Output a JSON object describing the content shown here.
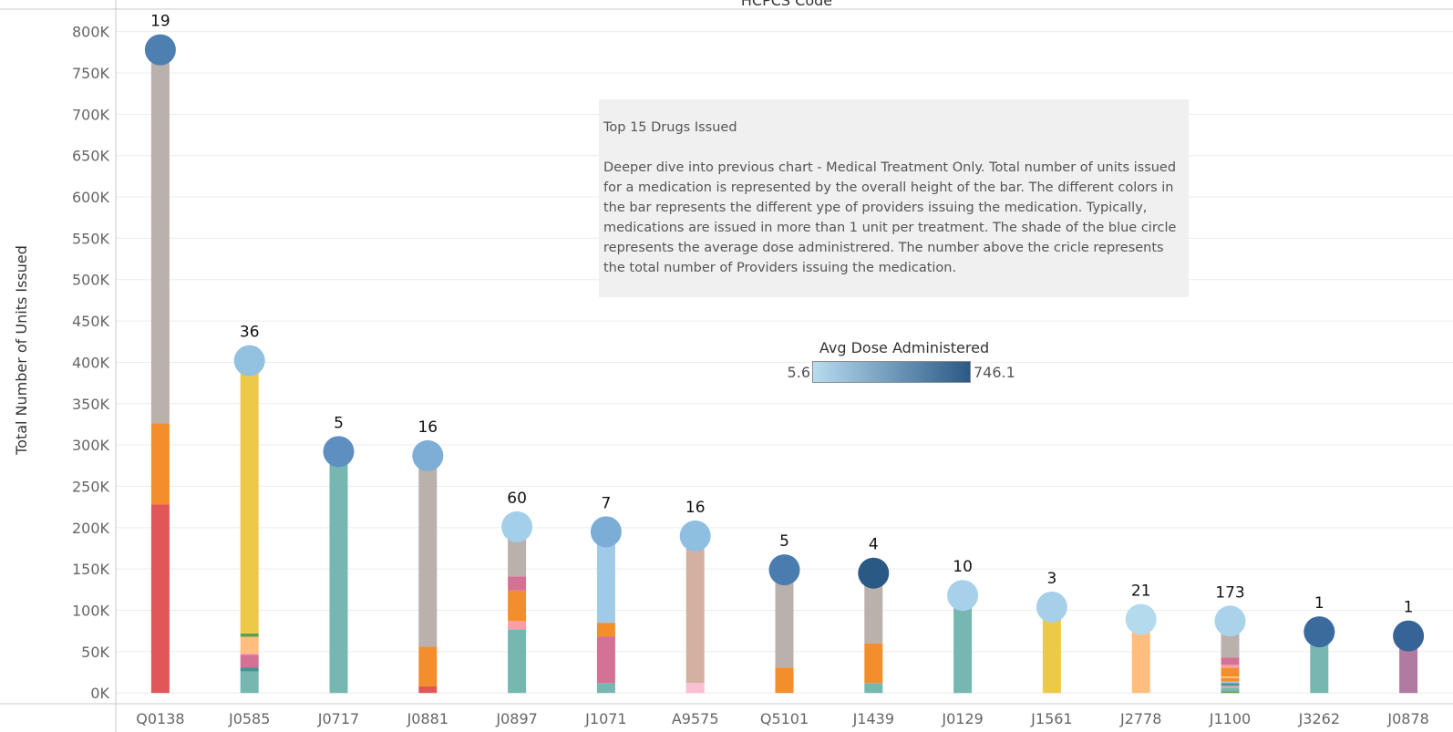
{
  "header": {
    "x_axis_title": "HCPCS Code"
  },
  "note": {
    "title": "Top 15 Drugs Issued",
    "body": "Deeper dive into previous chart - Medical Treatment Only.  Total number of units issued for a medication is represented by the overall height of the bar.  The different colors in the bar represents the different ype of providers issuing the medication.  Typically, medications are issued in more than 1 unit per treatment.  The shade of the blue circle represents the average dose administrered.  The number above the cricle  represents the total number of Providers issuing the medication."
  },
  "legend": {
    "title": "Avg Dose Administered",
    "min_label": "5.6",
    "max_label": "746.1",
    "color_low": "#b7dcef",
    "color_high": "#2b5986"
  },
  "chart_data": {
    "type": "bar",
    "ylabel": "Total Number of Units Issued",
    "ylim": [
      -13000,
      825000
    ],
    "y_ticks": [
      0,
      50000,
      100000,
      150000,
      200000,
      250000,
      300000,
      350000,
      400000,
      450000,
      500000,
      550000,
      600000,
      650000,
      700000,
      750000,
      800000
    ],
    "y_tick_labels": [
      "0K",
      "50K",
      "100K",
      "150K",
      "200K",
      "250K",
      "300K",
      "350K",
      "400K",
      "450K",
      "500K",
      "550K",
      "600K",
      "650K",
      "700K",
      "750K",
      "800K"
    ],
    "grid": true,
    "categories": [
      "Q0138",
      "J0585",
      "J0717",
      "J0881",
      "J0897",
      "J1071",
      "A9575",
      "Q5101",
      "J1439",
      "J0129",
      "J1561",
      "J2778",
      "J1100",
      "J3262",
      "J0878"
    ],
    "totals": [
      778000,
      402000,
      292000,
      287000,
      201000,
      195000,
      190000,
      149000,
      145000,
      118000,
      104000,
      89000,
      87000,
      74000,
      69000
    ],
    "providers": [
      "19",
      "36",
      "5",
      "16",
      "60",
      "7",
      "16",
      "5",
      "4",
      "10",
      "3",
      "21",
      "173",
      "1",
      "1"
    ],
    "avg_dose_shade": [
      "#4d7fb1",
      "#93c2e1",
      "#5f8fc0",
      "#7eaed6",
      "#a4cfea",
      "#7badd6",
      "#8ebfe0",
      "#4a7cb0",
      "#2b5986",
      "#a7d1eb",
      "#a6d0ea",
      "#b4daee",
      "#a9d3eb",
      "#3b6a9c",
      "#366496"
    ],
    "segments": [
      [
        {
          "v": 228000,
          "c": "#e15759"
        },
        {
          "v": 98000,
          "c": "#f28e2b"
        },
        {
          "v": 452000,
          "c": "#bab0ac"
        }
      ],
      [
        {
          "v": 26000,
          "c": "#76b7b2"
        },
        {
          "v": 5000,
          "c": "#4e8f94"
        },
        {
          "v": 15000,
          "c": "#d37295"
        },
        {
          "v": 2000,
          "c": "#ff9da7"
        },
        {
          "v": 20000,
          "c": "#ffbe7d"
        },
        {
          "v": 4000,
          "c": "#59a14f"
        },
        {
          "v": 330000,
          "c": "#edc948"
        }
      ],
      [
        {
          "v": 292000,
          "c": "#76b7b2"
        }
      ],
      [
        {
          "v": 8000,
          "c": "#e15759"
        },
        {
          "v": 48000,
          "c": "#f28e2b"
        },
        {
          "v": 231000,
          "c": "#bab0ac"
        }
      ],
      [
        {
          "v": 77000,
          "c": "#76b7b2"
        },
        {
          "v": 10000,
          "c": "#ff9da7"
        },
        {
          "v": 37000,
          "c": "#f28e2b"
        },
        {
          "v": 17000,
          "c": "#d37295"
        },
        {
          "v": 60000,
          "c": "#bab0ac"
        }
      ],
      [
        {
          "v": 12000,
          "c": "#76b7b2"
        },
        {
          "v": 56000,
          "c": "#d37295"
        },
        {
          "v": 17000,
          "c": "#f28e2b"
        },
        {
          "v": 110000,
          "c": "#a0cbe8"
        }
      ],
      [
        {
          "v": 12000,
          "c": "#fabfd2"
        },
        {
          "v": 178000,
          "c": "#d4b0a0"
        }
      ],
      [
        {
          "v": 30000,
          "c": "#f28e2b"
        },
        {
          "v": 119000,
          "c": "#bab0ac"
        }
      ],
      [
        {
          "v": 12000,
          "c": "#76b7b2"
        },
        {
          "v": 48000,
          "c": "#f28e2b"
        },
        {
          "v": 85000,
          "c": "#bab0ac"
        }
      ],
      [
        {
          "v": 118000,
          "c": "#76b7b2"
        }
      ],
      [
        {
          "v": 104000,
          "c": "#edc948"
        }
      ],
      [
        {
          "v": 89000,
          "c": "#ffbe7d"
        }
      ],
      [
        {
          "v": 2000,
          "c": "#59a14f"
        },
        {
          "v": 4000,
          "c": "#76b7b2"
        },
        {
          "v": 3000,
          "c": "#bab0ac"
        },
        {
          "v": 3000,
          "c": "#4e8f94"
        },
        {
          "v": 2000,
          "c": "#a0cbe8"
        },
        {
          "v": 4000,
          "c": "#f28e2b"
        },
        {
          "v": 2000,
          "c": "#ffbe7d"
        },
        {
          "v": 10000,
          "c": "#f28e2b"
        },
        {
          "v": 4000,
          "c": "#ff9da7"
        },
        {
          "v": 9000,
          "c": "#d37295"
        },
        {
          "v": 44000,
          "c": "#bab0ac"
        }
      ],
      [
        {
          "v": 74000,
          "c": "#76b7b2"
        }
      ],
      [
        {
          "v": 69000,
          "c": "#b07aa1"
        }
      ]
    ]
  }
}
